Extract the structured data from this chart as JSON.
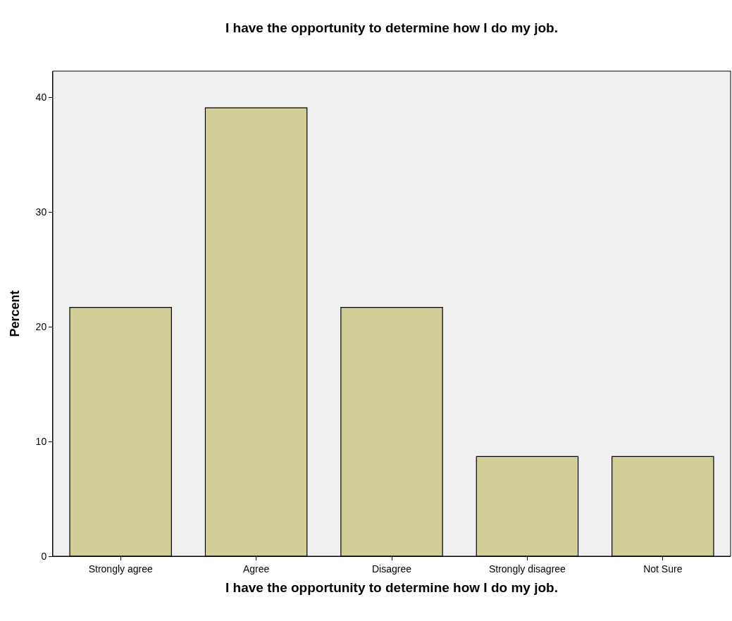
{
  "chart_data": {
    "type": "bar",
    "title": "I have the opportunity to determine how I do my job.",
    "xlabel": "I have the opportunity to determine how I do my job.",
    "ylabel": "Percent",
    "categories": [
      "Strongly agree",
      "Agree",
      "Disagree",
      "Strongly disagree",
      "Not Sure"
    ],
    "values": [
      21.7,
      39.1,
      21.7,
      8.7,
      8.7
    ],
    "color": "#d3ce97",
    "ylim": [
      0,
      42.3
    ],
    "yticks": [
      0,
      10,
      20,
      30,
      40
    ],
    "grid": false
  }
}
